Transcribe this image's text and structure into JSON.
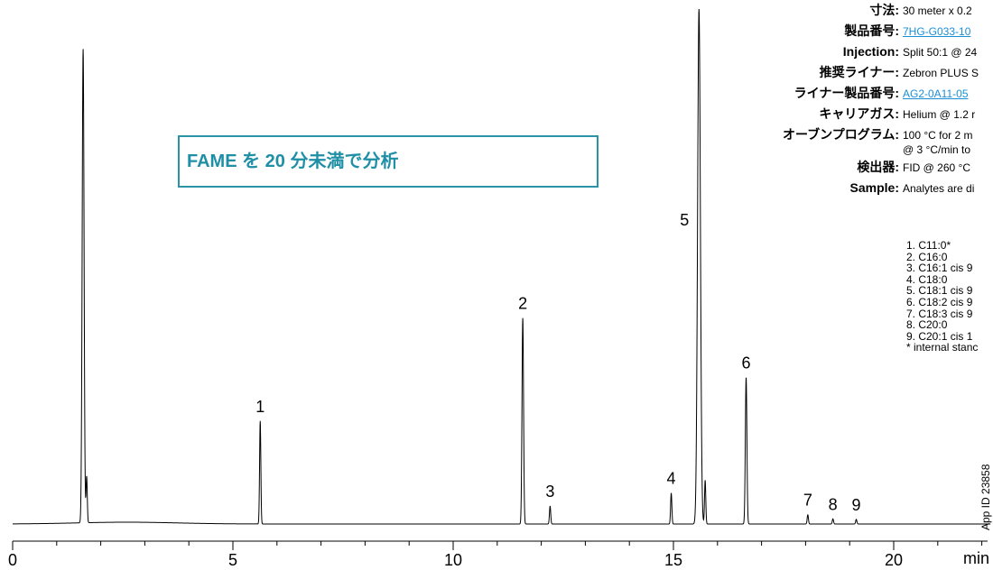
{
  "chart_data": {
    "type": "line",
    "xlabel": "min",
    "xlim": [
      0,
      22.2
    ],
    "x_ticks": [
      0,
      5,
      10,
      15,
      20
    ],
    "baseline": 0,
    "ylim": [
      0,
      100
    ],
    "peaks": [
      {
        "label": "",
        "rt": 1.6,
        "height": 92,
        "width": 0.03
      },
      {
        "label": "",
        "rt": 1.68,
        "height": 9,
        "width": 0.02
      },
      {
        "label": "1",
        "rt": 5.62,
        "height": 20,
        "width": 0.02
      },
      {
        "label": "2",
        "rt": 11.58,
        "height": 40,
        "width": 0.025
      },
      {
        "label": "3",
        "rt": 12.2,
        "height": 3.5,
        "width": 0.02
      },
      {
        "label": "4",
        "rt": 14.95,
        "height": 6,
        "width": 0.02
      },
      {
        "label": "5",
        "rt": 15.58,
        "height": 100,
        "width": 0.045
      },
      {
        "label": "",
        "rt": 15.72,
        "height": 8.5,
        "width": 0.02
      },
      {
        "label": "6",
        "rt": 16.65,
        "height": 28.5,
        "width": 0.025
      },
      {
        "label": "7",
        "rt": 18.05,
        "height": 1.8,
        "width": 0.02
      },
      {
        "label": "8",
        "rt": 18.62,
        "height": 1.0,
        "width": 0.02
      },
      {
        "label": "9",
        "rt": 19.15,
        "height": 0.9,
        "width": 0.02
      }
    ]
  },
  "callout": "FAME を 20 分未満で分析",
  "conditions": [
    {
      "label": "寸法:",
      "value": "30 meter x 0.2"
    },
    {
      "label": "製品番号:",
      "value": "7HG-G033-10",
      "link": true
    },
    {
      "label": "Injection:",
      "value": "Split 50:1 @ 24"
    },
    {
      "label": "推奨ライナー:",
      "value": "Zebron PLUS S"
    },
    {
      "label": "ライナー製品番号:",
      "value": "AG2-0A11-05",
      "link": true
    },
    {
      "label": "キャリアガス:",
      "value": "Helium @ 1.2 r"
    },
    {
      "label": "オーブンプログラム:",
      "value": "100 °C for 2 m",
      "value2": "@ 3 °C/min to"
    },
    {
      "label": "検出器:",
      "value": "FID @ 260 °C"
    },
    {
      "label": "Sample:",
      "value": "Analytes are di"
    }
  ],
  "analytes": [
    "1. C11:0*",
    "2. C16:0",
    "3. C16:1 cis 9",
    "4. C18:0",
    "5. C18:1 cis 9",
    "6. C18:2 cis 9",
    "7. C18:3 cis 9",
    "8. C20:0",
    "9. C20:1 cis 1",
    "* internal stanc"
  ],
  "app_id": "App ID 23858"
}
